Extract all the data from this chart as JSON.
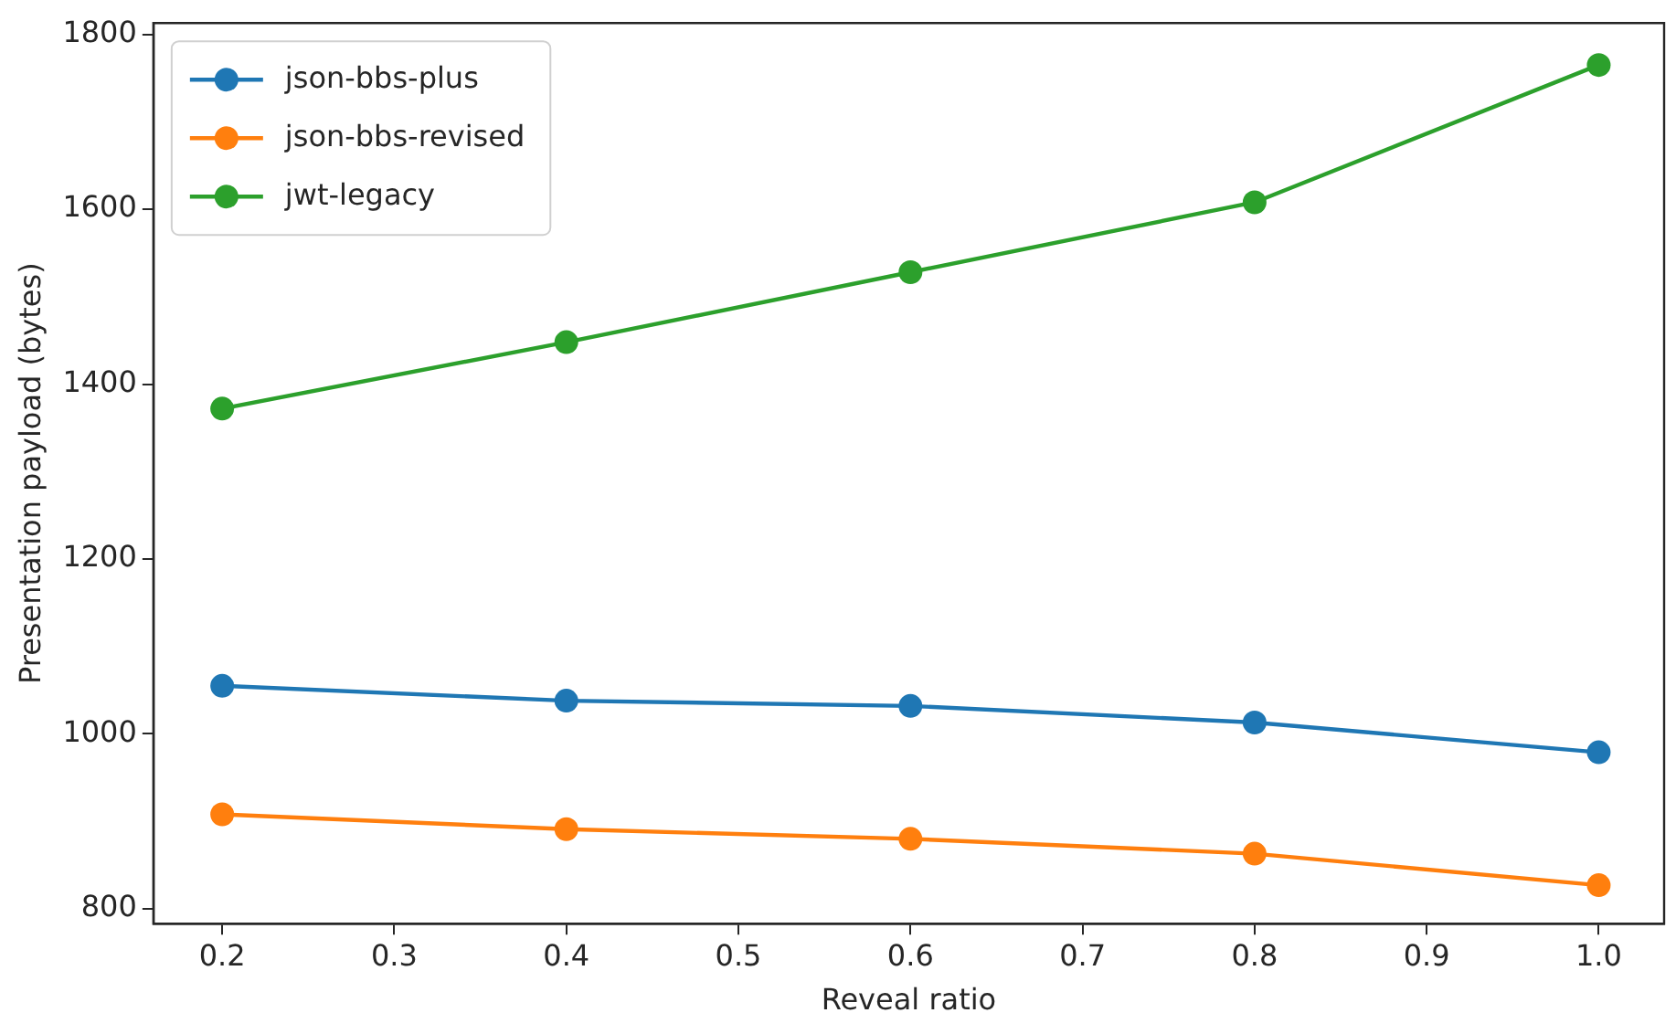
{
  "chart_data": {
    "type": "line",
    "xlabel": "Reveal ratio",
    "ylabel": "Presentation payload (bytes)",
    "x": [
      0.2,
      0.4,
      0.6,
      0.8,
      1.0
    ],
    "series": [
      {
        "name": "json-bbs-plus",
        "color": "#1f77b4",
        "values": [
          1055,
          1038,
          1032,
          1013,
          979
        ]
      },
      {
        "name": "json-bbs-revised",
        "color": "#ff7f0e",
        "values": [
          908,
          891,
          880,
          863,
          827
        ]
      },
      {
        "name": "jwt-legacy",
        "color": "#2ca02c",
        "values": [
          1372,
          1448,
          1528,
          1608,
          1765
        ]
      }
    ],
    "xlim": [
      0.16,
      1.038
    ],
    "xticks": [
      0.2,
      0.3,
      0.4,
      0.5,
      0.6,
      0.7,
      0.8,
      0.9,
      {
        "value": 1,
        "label": "1.0"
      }
    ],
    "ylim": [
      783,
      1813
    ],
    "yticks": [
      800,
      1000,
      1200,
      1400,
      1600,
      1800
    ],
    "grid": false,
    "legend": "top left",
    "marker": "circle",
    "line_style": "solid"
  }
}
